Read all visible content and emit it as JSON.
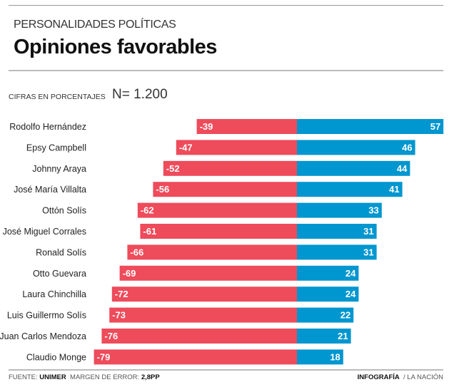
{
  "header": {
    "kicker": "PERSONALIDADES POLÍTICAS",
    "title": "Opiniones favorables",
    "unit_note": "CIFRAS EN PORCENTAJES",
    "sample": "N= 1.200"
  },
  "footer": {
    "source_label": "FUENTE:",
    "source": "UNIMER",
    "margin_label": "MARGEN DE ERROR:",
    "margin": "2,8PP",
    "credit_bold": "INFOGRAFÍA",
    "credit": "/ LA NACIÓN"
  },
  "colors": {
    "negative": "#ee4b5b",
    "positive": "#0096cf"
  },
  "chart_data": {
    "type": "bar",
    "orientation": "horizontal-diverging",
    "categories": [
      "Rodolfo Hernández",
      "Epsy Campbell",
      "Johnny Araya",
      "José María Villalta",
      "Ottón Solís",
      "José Miguel Corrales",
      "Ronald Solís",
      "Otto Guevara",
      "Laura Chinchilla",
      "Luis Guillermo Solís",
      "Juan Carlos Mendoza",
      "Claudio Monge"
    ],
    "series": [
      {
        "values": [
          -39,
          -47,
          -52,
          -56,
          -62,
          -61,
          -66,
          -69,
          -72,
          -73,
          -76,
          -79
        ]
      },
      {
        "values": [
          57,
          46,
          44,
          41,
          33,
          31,
          31,
          24,
          24,
          22,
          21,
          18
        ]
      }
    ],
    "grid": false
  }
}
